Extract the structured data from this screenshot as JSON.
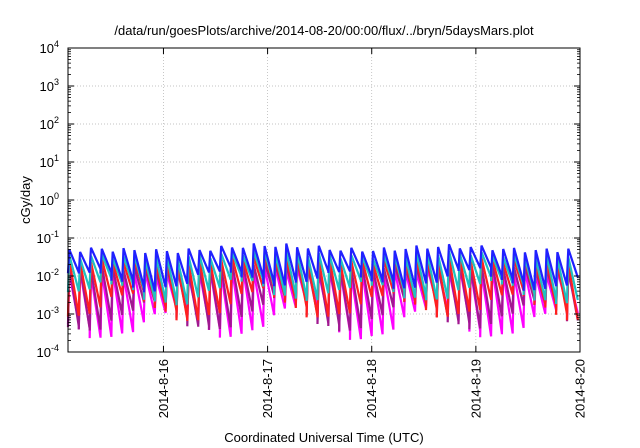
{
  "chart_data": {
    "type": "line",
    "title": "/data/run/goesPlots/archive/2014-08-20/00:00/flux/../bryn/5daysMars.plot",
    "xlabel": "Coordinated Universal Time (UTC)",
    "ylabel": "cGy/day",
    "x_range": [
      "2014-08-15 02:00",
      "2014-08-20 00:00"
    ],
    "x_ticks": [
      "2014-8-16",
      "2014-8-17",
      "2014-8-18",
      "2014-8-19",
      "2014-8-20"
    ],
    "y_scale": "log",
    "y_range": [
      0.0001,
      10000
    ],
    "y_ticks": [
      {
        "base": "10",
        "exp": "-4"
      },
      {
        "base": "10",
        "exp": "-3"
      },
      {
        "base": "10",
        "exp": "-2"
      },
      {
        "base": "10",
        "exp": "-1"
      },
      {
        "base": "10",
        "exp": "0"
      },
      {
        "base": "10",
        "exp": "1"
      },
      {
        "base": "10",
        "exp": "2"
      },
      {
        "base": "10",
        "exp": "3"
      },
      {
        "base": "10",
        "exp": "4"
      }
    ],
    "grid": true,
    "cycle_hours": 2.5,
    "series": [
      {
        "color": "#ff00ff",
        "peak": 0.0105,
        "trough": 0.00028
      },
      {
        "color": "#a01890",
        "peak": 0.0145,
        "trough": 0.00045
      },
      {
        "color": "#ff2020",
        "peak": 0.021,
        "trough": 0.00085
      },
      {
        "color": "#20c0c0",
        "peak": 0.028,
        "trough": 0.0022
      },
      {
        "color": "#2020ff",
        "peak": 0.042,
        "trough": 0.0048
      }
    ]
  }
}
